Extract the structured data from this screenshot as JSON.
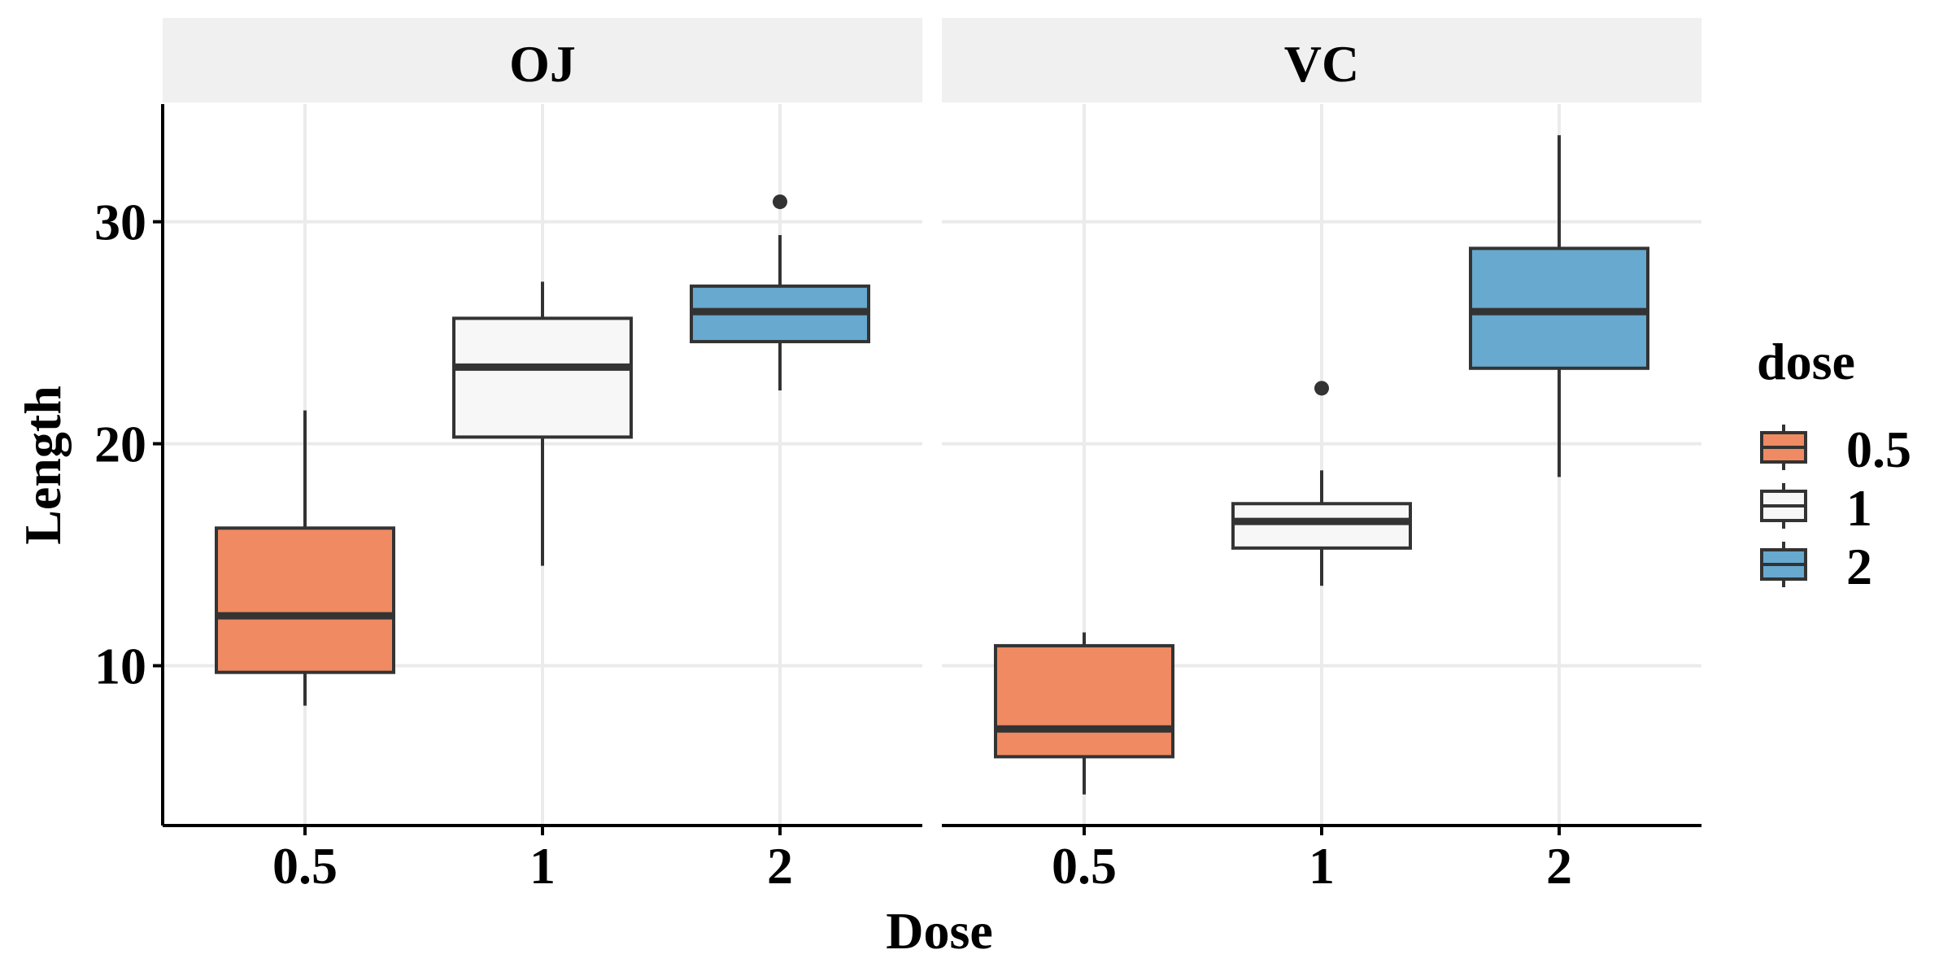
{
  "chart_data": {
    "type": "boxplot",
    "facets": [
      "OJ",
      "VC"
    ],
    "categories": [
      "0.5",
      "1",
      "2"
    ],
    "xlabel": "Dose",
    "ylabel": "Length",
    "yticks": [
      10,
      20,
      30
    ],
    "ylim": [
      2.8,
      35.3
    ],
    "grid": true,
    "legend": {
      "title": "dose",
      "position": "right",
      "entries": [
        "0.5",
        "1",
        "2"
      ]
    },
    "colors": {
      "0.5": "#EF8A62",
      "1": "#F7F7F7",
      "2": "#67A9CF",
      "outline": "#333333",
      "grid": "#EBEBEB",
      "strip": "#F0F0F0"
    },
    "boxes": [
      {
        "facet": "OJ",
        "dose": "0.5",
        "whisker_low": 8.2,
        "q1": 9.7,
        "median": 12.25,
        "q3": 16.2,
        "whisker_high": 21.5,
        "outliers": []
      },
      {
        "facet": "OJ",
        "dose": "1",
        "whisker_low": 14.5,
        "q1": 20.3,
        "median": 23.45,
        "q3": 25.65,
        "whisker_high": 27.3,
        "outliers": []
      },
      {
        "facet": "OJ",
        "dose": "2",
        "whisker_low": 22.4,
        "q1": 24.6,
        "median": 25.95,
        "q3": 27.1,
        "whisker_high": 29.4,
        "outliers": [
          30.9
        ]
      },
      {
        "facet": "VC",
        "dose": "0.5",
        "whisker_low": 4.2,
        "q1": 5.9,
        "median": 7.15,
        "q3": 10.9,
        "whisker_high": 11.5,
        "outliers": []
      },
      {
        "facet": "VC",
        "dose": "1",
        "whisker_low": 13.6,
        "q1": 15.3,
        "median": 16.5,
        "q3": 17.3,
        "whisker_high": 18.8,
        "outliers": [
          22.5
        ]
      },
      {
        "facet": "VC",
        "dose": "2",
        "whisker_low": 18.5,
        "q1": 23.4,
        "median": 25.95,
        "q3": 28.8,
        "whisker_high": 33.9,
        "outliers": []
      }
    ]
  }
}
